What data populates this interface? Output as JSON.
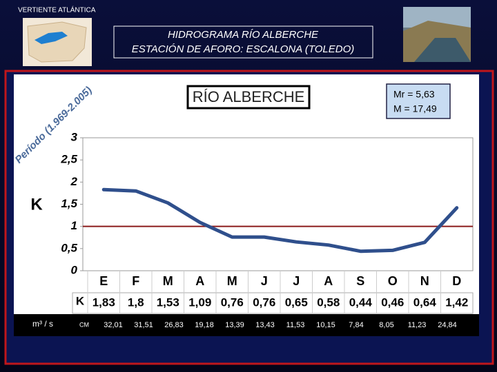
{
  "header": {
    "region": "VERTIENTE ATLÁNTICA",
    "title": "HIDROGRAMA RÍO ALBERCHE",
    "subtitle": "ESTACIÓN DE AFORO: ESCALONA (TOLEDO)"
  },
  "chart_data": {
    "type": "line",
    "title": "RÍO ALBERCHE",
    "annotations": [
      "Mr = 5,63",
      "M = 17,49",
      "Período (1.969-2.005)"
    ],
    "y_label": "K",
    "categories": [
      "E",
      "F",
      "M",
      "A",
      "M",
      "J",
      "J",
      "A",
      "S",
      "O",
      "N",
      "D"
    ],
    "series": [
      {
        "name": "K",
        "color": "#2f4f8c",
        "values": [
          1.83,
          1.8,
          1.53,
          1.09,
          0.76,
          0.76,
          0.65,
          0.58,
          0.44,
          0.46,
          0.64,
          1.42
        ],
        "value_labels": [
          "1,83",
          "1,8",
          "1,53",
          "1,09",
          "0,76",
          "0,76",
          "0,65",
          "0,58",
          "0,44",
          "0,46",
          "0,64",
          "1,42"
        ]
      }
    ],
    "ylim": [
      0,
      3
    ],
    "yticks": [
      0,
      {
        "value": 0.5,
        "label": "0,5"
      },
      1,
      {
        "value": 1.5,
        "label": "1,5"
      },
      2,
      {
        "value": 2.5,
        "label": "2,5"
      },
      3
    ],
    "reference_line": {
      "value": 1,
      "color": "#8b1a1a"
    },
    "grid": false
  },
  "flow_table": {
    "label": "m³ / s",
    "unit": "CM",
    "values": [
      "32,01",
      "31,51",
      "26,83",
      "19,18",
      "13,39",
      "13,43",
      "11,53",
      "10,15",
      "7,84",
      "8,05",
      "11,23",
      "24,84"
    ]
  }
}
